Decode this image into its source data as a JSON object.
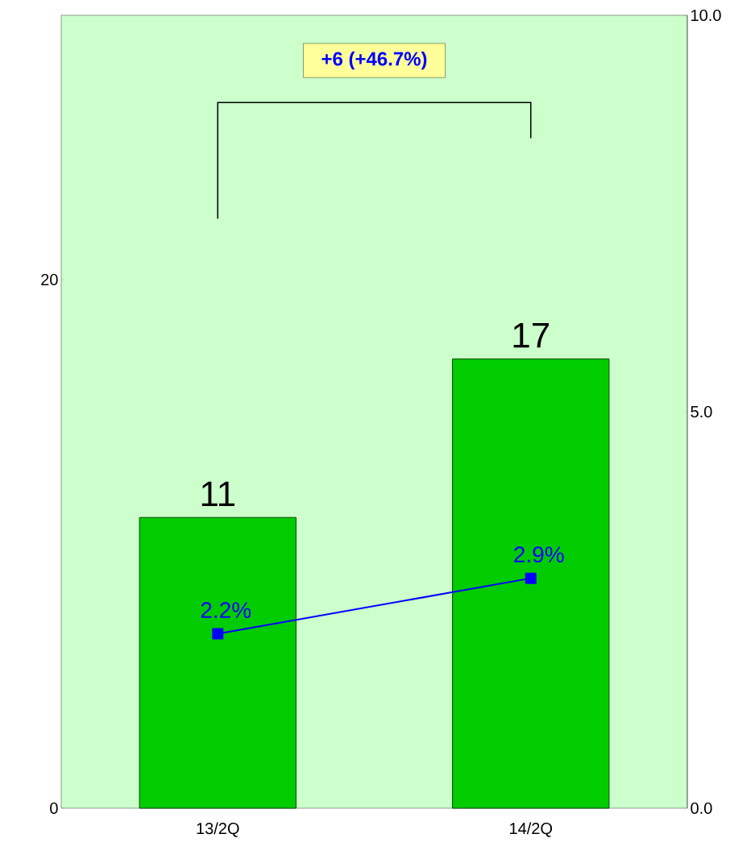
{
  "chart_data": {
    "type": "bar",
    "categories": [
      "13/2Q",
      "14/2Q"
    ],
    "ylim": [
      0,
      30
    ],
    "yticks": [
      0,
      20
    ],
    "y2lim": [
      0,
      10
    ],
    "y2ticks": [
      {
        "value": 0,
        "label": "0.0"
      },
      {
        "value": 5,
        "label": "5.0"
      },
      {
        "value": 10,
        "label": "10.0"
      }
    ],
    "marker": "square",
    "line_style": "solid",
    "annotations": [
      "+6 (+46.7%)"
    ],
    "series": [
      {
        "color": "#00cc00",
        "values": [
          11,
          17
        ],
        "value_labels": [
          "11",
          "17"
        ]
      },
      {
        "type": "line",
        "axis": "y2",
        "color": "#0000ff",
        "values": [
          2.2,
          2.9
        ],
        "value_labels": [
          "2.2%",
          "2.9%"
        ]
      }
    ]
  }
}
